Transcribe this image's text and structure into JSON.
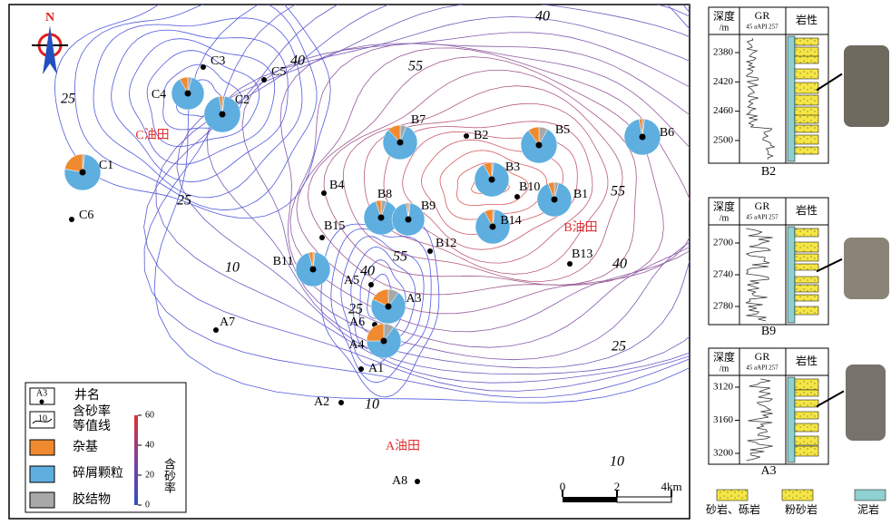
{
  "map": {
    "north": "N",
    "fields": [
      "C油田",
      "B油田",
      "A油田"
    ],
    "wells": [
      {
        "name": "C3"
      },
      {
        "name": "C5"
      },
      {
        "name": "C6"
      },
      {
        "name": "B4"
      },
      {
        "name": "B15"
      },
      {
        "name": "B2"
      },
      {
        "name": "B10"
      },
      {
        "name": "B12"
      },
      {
        "name": "B13"
      },
      {
        "name": "A5"
      },
      {
        "name": "A6"
      },
      {
        "name": "A1"
      },
      {
        "name": "A2"
      },
      {
        "name": "A7"
      },
      {
        "name": "A8"
      }
    ],
    "pie_wells": [
      {
        "name": "C4",
        "matrix": 8,
        "clastic": 88,
        "cement": 4
      },
      {
        "name": "C2",
        "matrix": 3,
        "clastic": 95,
        "cement": 2
      },
      {
        "name": "C1",
        "matrix": 22,
        "clastic": 76,
        "cement": 2
      },
      {
        "name": "B7",
        "matrix": 12,
        "clastic": 82,
        "cement": 6
      },
      {
        "name": "B5",
        "matrix": 10,
        "clastic": 82,
        "cement": 8
      },
      {
        "name": "B6",
        "matrix": 3,
        "clastic": 95,
        "cement": 2
      },
      {
        "name": "B3",
        "matrix": 8,
        "clastic": 90,
        "cement": 2
      },
      {
        "name": "B1",
        "matrix": 6,
        "clastic": 90,
        "cement": 4
      },
      {
        "name": "B8",
        "matrix": 5,
        "clastic": 90,
        "cement": 5
      },
      {
        "name": "B9",
        "matrix": 2,
        "clastic": 96,
        "cement": 2
      },
      {
        "name": "B14",
        "matrix": 8,
        "clastic": 90,
        "cement": 2
      },
      {
        "name": "B11",
        "matrix": 4,
        "clastic": 94,
        "cement": 2
      },
      {
        "name": "A3",
        "matrix": 18,
        "clastic": 72,
        "cement": 10
      },
      {
        "name": "A4",
        "matrix": 25,
        "clastic": 65,
        "cement": 10
      }
    ],
    "contour_labels": [
      40,
      40,
      55,
      25,
      25,
      55,
      55,
      40,
      10,
      40,
      25,
      25,
      10,
      10
    ],
    "scale_ticks": [
      0,
      2,
      {
        "value": 4,
        "label": "4km"
      }
    ]
  },
  "legend": {
    "well_icon": "A3",
    "well": "井名",
    "contour_icon": "10",
    "contour_1": "含砂率",
    "contour_2": "等值线",
    "matrix": "杂基",
    "clastic": "碎屑颗粒",
    "cement": "胶结物",
    "bar_ticks": [
      60,
      40,
      20,
      0
    ],
    "bar_label": "含砂率"
  },
  "logs": [
    {
      "well": "B2",
      "depth": "深度",
      "unit": "/m",
      "gr": "GR",
      "gr_scale": "45 aAPI 257",
      "lith": "岩性",
      "depths": [
        2380,
        2420,
        2460,
        2500
      ]
    },
    {
      "well": "B9",
      "depth": "深度",
      "unit": "/m",
      "gr": "GR",
      "gr_scale": "45 aAPI 257",
      "lith": "岩性",
      "depths": [
        2700,
        2740,
        2780
      ]
    },
    {
      "well": "A3",
      "depth": "深度",
      "unit": "/m",
      "gr": "GR",
      "gr_scale": "45 aAPI 257",
      "lith": "岩性",
      "depths": [
        3120,
        3160,
        3200
      ]
    }
  ],
  "lith_legend": [
    "砂岩、砾岩",
    "粉砂岩",
    "泥岩"
  ]
}
